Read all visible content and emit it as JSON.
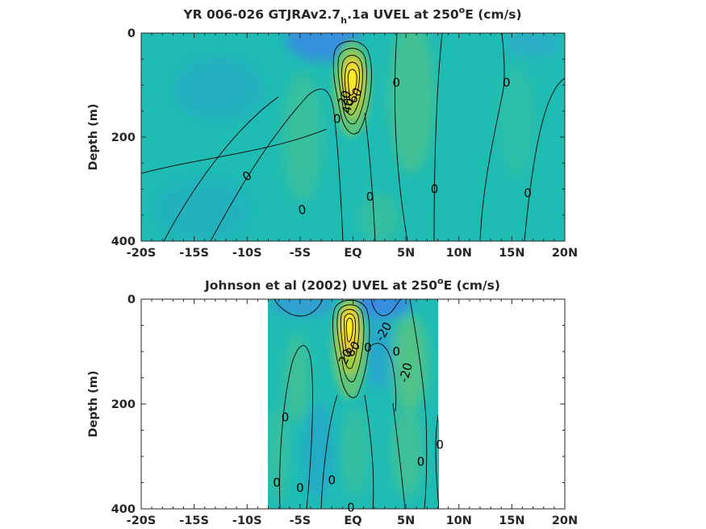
{
  "figure": {
    "panels": [
      {
        "title_main": "YR 006-026 GTJRAv2.7",
        "title_sub": "h",
        "title_rest": ".1a UVEL at 250",
        "title_sup": "o",
        "title_end": "E (cm/s)",
        "ylabel": "Depth (m)"
      },
      {
        "title_main": "Johnson et al (2002) UVEL at 250",
        "title_sup": "o",
        "title_end": "E (cm/s)",
        "ylabel": "Depth (m)"
      }
    ]
  },
  "colors": {
    "background": "#1fbcb4",
    "negative": "#3c86e6",
    "weak_positive": "#4cc28c",
    "moderate_positive": "#8ec84e",
    "core": "#f5d12e",
    "peak": "#fbf020",
    "contour": "#000000"
  },
  "chart_data": [
    {
      "type": "heatmap",
      "variable": "UVEL",
      "units": "cm/s",
      "xlim": [
        -20,
        20
      ],
      "ylim": [
        400,
        0
      ],
      "xticks": [
        -20,
        -15,
        -10,
        -5,
        0,
        5,
        10,
        15,
        20
      ],
      "xticklabels": [
        "-20S",
        "-15S",
        "-10S",
        "-5S",
        "EQ",
        "5N",
        "10N",
        "15N",
        "20N"
      ],
      "yticks": [
        0,
        200,
        400
      ],
      "yticklabels": [
        "0",
        "200",
        "400"
      ],
      "data_lat_range": [
        -20,
        20
      ],
      "features": [
        {
          "kind": "max",
          "lat": 0,
          "depth": 95,
          "value": 90
        },
        {
          "kind": "max",
          "lat": 6,
          "depth": 110,
          "value": 25
        },
        {
          "kind": "max",
          "lat": -4.5,
          "depth": 165,
          "value": 10
        },
        {
          "kind": "max",
          "lat": 4.5,
          "depth": 330,
          "value": 12
        },
        {
          "kind": "min",
          "lat": -2.5,
          "depth": 20,
          "value": -25
        },
        {
          "kind": "min",
          "lat": -8,
          "depth": 120,
          "value": -10
        }
      ],
      "contour_labels": [
        {
          "text": "0",
          "lat": -10,
          "depth": 275,
          "rot": -35
        },
        {
          "text": "0",
          "lat": -4.8,
          "depth": 340,
          "rot": -10
        },
        {
          "text": "0",
          "lat": -1.5,
          "depth": 165,
          "rot": 0
        },
        {
          "text": "0",
          "lat": 1.6,
          "depth": 315,
          "rot": 0
        },
        {
          "text": "0",
          "lat": 4.1,
          "depth": 95,
          "rot": 0
        },
        {
          "text": "0",
          "lat": 7.7,
          "depth": 300,
          "rot": 0
        },
        {
          "text": "0",
          "lat": 14.5,
          "depth": 95,
          "rot": 0
        },
        {
          "text": "0",
          "lat": 16.5,
          "depth": 308,
          "rot": 0
        },
        {
          "text": "20",
          "lat": -0.8,
          "depth": 125,
          "rot": -70
        },
        {
          "text": "60",
          "lat": 0.2,
          "depth": 120,
          "rot": -60
        },
        {
          "text": "40",
          "lat": -0.5,
          "depth": 140,
          "rot": -80
        }
      ]
    },
    {
      "type": "heatmap",
      "variable": "UVEL",
      "units": "cm/s",
      "xlim": [
        -20,
        20
      ],
      "ylim": [
        400,
        0
      ],
      "xticks": [
        -20,
        -15,
        -10,
        -5,
        0,
        5,
        10,
        15,
        20
      ],
      "xticklabels": [
        "-20S",
        "-15S",
        "-10S",
        "-5S",
        "EQ",
        "5N",
        "10N",
        "15N",
        "20N"
      ],
      "yticks": [
        0,
        200,
        400
      ],
      "yticklabels": [
        "0",
        "200",
        "400"
      ],
      "data_lat_range": [
        -8,
        8.3
      ],
      "features": [
        {
          "kind": "max",
          "lat": -0.3,
          "depth": 65,
          "value": 100
        },
        {
          "kind": "max",
          "lat": 6,
          "depth": 90,
          "value": 25
        },
        {
          "kind": "max",
          "lat": -4.5,
          "depth": 170,
          "value": 10
        },
        {
          "kind": "max",
          "lat": -6.3,
          "depth": 260,
          "value": 8
        },
        {
          "kind": "max",
          "lat": 5.8,
          "depth": 250,
          "value": 10
        },
        {
          "kind": "min",
          "lat": 2.5,
          "depth": 10,
          "value": -35
        },
        {
          "kind": "min",
          "lat": -3,
          "depth": 15,
          "value": -15
        },
        {
          "kind": "min",
          "lat": 3.7,
          "depth": 130,
          "value": -25
        }
      ],
      "contour_labels": [
        {
          "text": "0",
          "lat": -6.4,
          "depth": 225,
          "rot": 0
        },
        {
          "text": "0",
          "lat": -7.2,
          "depth": 350,
          "rot": 0
        },
        {
          "text": "0",
          "lat": -5,
          "depth": 360,
          "rot": 0
        },
        {
          "text": "0",
          "lat": -2,
          "depth": 345,
          "rot": 0
        },
        {
          "text": "0",
          "lat": -0.2,
          "depth": 398,
          "rot": 0
        },
        {
          "text": "0",
          "lat": 1.4,
          "depth": 92,
          "rot": 0
        },
        {
          "text": "0",
          "lat": 4.1,
          "depth": 100,
          "rot": 0
        },
        {
          "text": "0",
          "lat": 6.4,
          "depth": 310,
          "rot": 0
        },
        {
          "text": "0",
          "lat": 8.2,
          "depth": 278,
          "rot": 0
        },
        {
          "text": "-20",
          "lat": 2.9,
          "depth": 62,
          "rot": -60
        },
        {
          "text": "-20",
          "lat": 5,
          "depth": 140,
          "rot": -75
        },
        {
          "text": "80",
          "lat": 0,
          "depth": 95,
          "rot": -55
        },
        {
          "text": "20",
          "lat": -0.7,
          "depth": 110,
          "rot": -65
        }
      ]
    }
  ]
}
